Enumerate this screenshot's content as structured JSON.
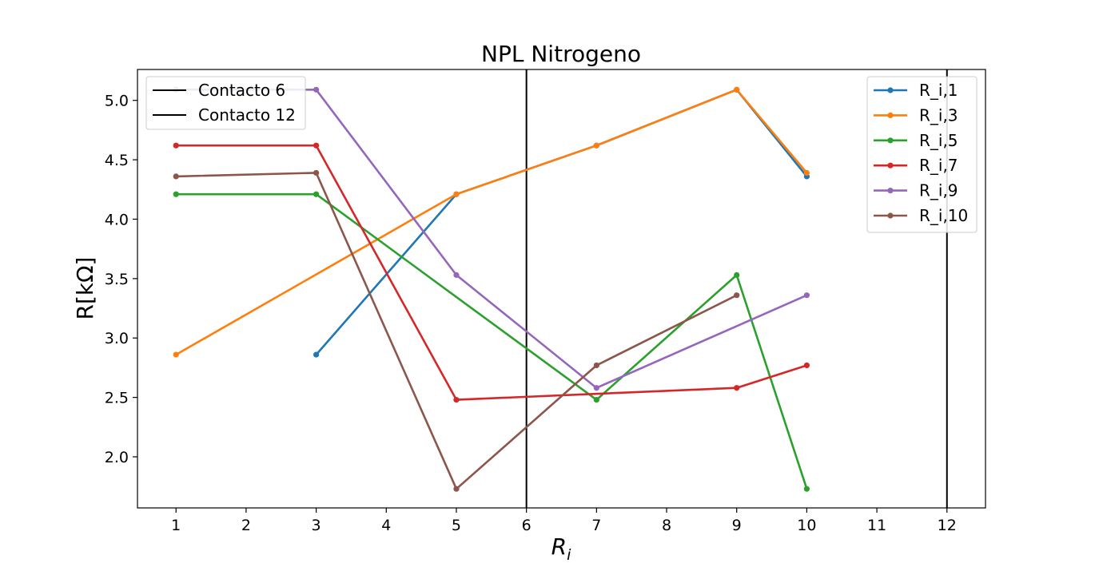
{
  "chart_data": {
    "type": "line",
    "title": "NPL Nitrogeno",
    "xlabel": "R",
    "xlabel_subscript": "i",
    "ylabel": "R[kΩ]",
    "xlim": [
      0.45,
      12.55
    ],
    "ylim": [
      1.57,
      5.26
    ],
    "xticks": [
      1,
      2,
      3,
      4,
      5,
      6,
      7,
      8,
      9,
      10,
      11,
      12
    ],
    "yticks": [
      2.0,
      2.5,
      3.0,
      3.5,
      4.0,
      4.5,
      5.0
    ],
    "ytick_labels": [
      "2.0",
      "2.5",
      "3.0",
      "3.5",
      "4.0",
      "4.5",
      "5.0"
    ],
    "grid": false,
    "series": [
      {
        "name": "R_i,1",
        "color": "#1f77b4",
        "x": [
          3,
          5,
          7,
          9,
          10
        ],
        "y": [
          2.86,
          4.21,
          4.62,
          5.09,
          4.36
        ]
      },
      {
        "name": "R_i,3",
        "color": "#ff7f0e",
        "x": [
          1,
          5,
          7,
          9,
          10
        ],
        "y": [
          2.86,
          4.21,
          4.62,
          5.09,
          4.39
        ]
      },
      {
        "name": "R_i,5",
        "color": "#2ca02c",
        "x": [
          1,
          3,
          7,
          9,
          10
        ],
        "y": [
          4.21,
          4.21,
          2.48,
          3.53,
          1.73
        ]
      },
      {
        "name": "R_i,7",
        "color": "#d62728",
        "x": [
          1,
          3,
          5,
          9,
          10
        ],
        "y": [
          4.62,
          4.62,
          2.48,
          2.58,
          2.77
        ]
      },
      {
        "name": "R_i,9",
        "color": "#9467bd",
        "x": [
          1,
          3,
          5,
          7,
          10
        ],
        "y": [
          5.09,
          5.09,
          3.53,
          2.58,
          3.36
        ]
      },
      {
        "name": "R_i,10",
        "color": "#8c564b",
        "x": [
          1,
          3,
          5,
          7,
          9
        ],
        "y": [
          4.36,
          4.39,
          1.73,
          2.77,
          3.36
        ]
      }
    ],
    "vlines": [
      {
        "name": "Contacto 6",
        "x": 6,
        "color": "#000000"
      },
      {
        "name": "Contacto 12",
        "x": 12,
        "color": "#000000"
      }
    ],
    "legend_series_placement": "upper right",
    "legend_vlines_placement": "upper left"
  }
}
